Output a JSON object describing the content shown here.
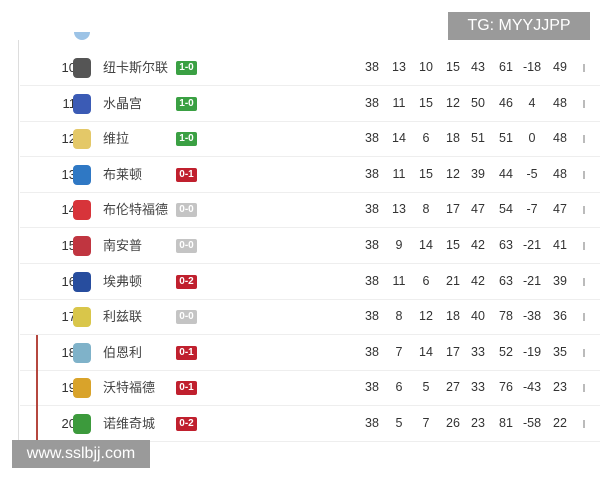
{
  "watermarks": {
    "top": "TG: MYYJJPP",
    "bottom": "www.sslbjj.com"
  },
  "colors": {
    "win": "#3aa043",
    "loss": "#c0202e",
    "draw": "#c4c4c4",
    "relegation": "#b5473f"
  },
  "rows": [
    {
      "rank": "10",
      "team": "纽卡斯尔联",
      "logo": "newcastle-logo",
      "logo_color": "#555555",
      "result": "1-0",
      "outcome": "win",
      "stats": [
        "38",
        "13",
        "10",
        "15",
        "43",
        "61",
        "-18",
        "49"
      ],
      "relegated": false
    },
    {
      "rank": "11",
      "team": "水晶宫",
      "logo": "crystal-palace-logo",
      "logo_color": "#3b5bb5",
      "result": "1-0",
      "outcome": "win",
      "stats": [
        "38",
        "11",
        "15",
        "12",
        "50",
        "46",
        "4",
        "48"
      ],
      "relegated": false
    },
    {
      "rank": "12",
      "team": "维拉",
      "logo": "aston-villa-logo",
      "logo_color": "#e4c868",
      "result": "1-0",
      "outcome": "win",
      "stats": [
        "38",
        "14",
        "6",
        "18",
        "51",
        "51",
        "0",
        "48"
      ],
      "relegated": false
    },
    {
      "rank": "13",
      "team": "布莱顿",
      "logo": "brighton-logo",
      "logo_color": "#2f78c4",
      "result": "0-1",
      "outcome": "loss",
      "stats": [
        "38",
        "11",
        "15",
        "12",
        "39",
        "44",
        "-5",
        "48"
      ],
      "relegated": false
    },
    {
      "rank": "14",
      "team": "布伦特福德",
      "logo": "brentford-logo",
      "logo_color": "#d7343a",
      "result": "0-0",
      "outcome": "draw",
      "stats": [
        "38",
        "13",
        "8",
        "17",
        "47",
        "54",
        "-7",
        "47"
      ],
      "relegated": false
    },
    {
      "rank": "15",
      "team": "南安普",
      "logo": "southampton-logo",
      "logo_color": "#c03540",
      "result": "0-0",
      "outcome": "draw",
      "stats": [
        "38",
        "9",
        "14",
        "15",
        "42",
        "63",
        "-21",
        "41"
      ],
      "relegated": false
    },
    {
      "rank": "16",
      "team": "埃弗顿",
      "logo": "everton-logo",
      "logo_color": "#274d9e",
      "result": "0-2",
      "outcome": "loss",
      "stats": [
        "38",
        "11",
        "6",
        "21",
        "42",
        "63",
        "-21",
        "39"
      ],
      "relegated": false
    },
    {
      "rank": "17",
      "team": "利兹联",
      "logo": "leeds-logo",
      "logo_color": "#d9c64a",
      "result": "0-0",
      "outcome": "draw",
      "stats": [
        "38",
        "8",
        "12",
        "18",
        "40",
        "78",
        "-38",
        "36"
      ],
      "relegated": false
    },
    {
      "rank": "18",
      "team": "伯恩利",
      "logo": "burnley-logo",
      "logo_color": "#7fb2c9",
      "result": "0-1",
      "outcome": "loss",
      "stats": [
        "38",
        "7",
        "14",
        "17",
        "33",
        "52",
        "-19",
        "35"
      ],
      "relegated": true
    },
    {
      "rank": "19",
      "team": "沃特福德",
      "logo": "watford-logo",
      "logo_color": "#d9a32a",
      "result": "0-1",
      "outcome": "loss",
      "stats": [
        "38",
        "6",
        "5",
        "27",
        "33",
        "76",
        "-43",
        "23"
      ],
      "relegated": true
    },
    {
      "rank": "20",
      "team": "诺维奇城",
      "logo": "norwich-logo",
      "logo_color": "#3c9a3c",
      "result": "0-2",
      "outcome": "loss",
      "stats": [
        "38",
        "5",
        "7",
        "26",
        "23",
        "81",
        "-58",
        "22"
      ],
      "relegated": true
    }
  ]
}
